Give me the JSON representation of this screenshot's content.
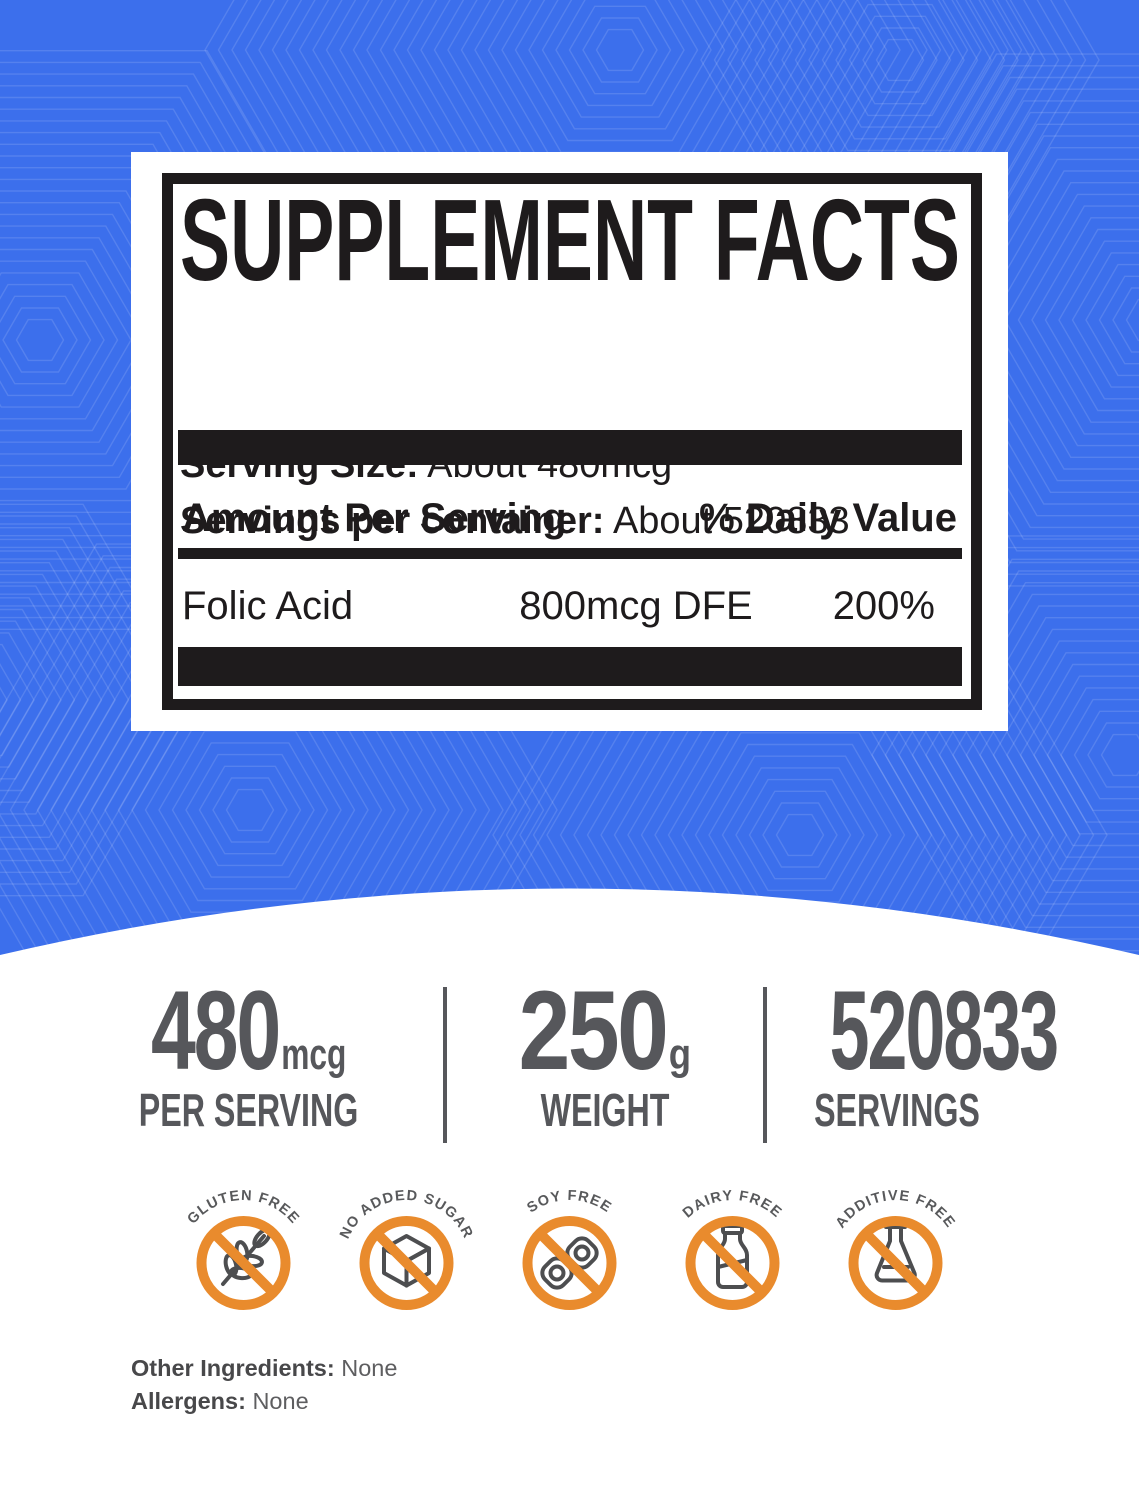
{
  "colors": {
    "background_blue": "#3C6FEC",
    "ink_black": "#1E1B1C",
    "gray_text": "#58595B",
    "badge_orange": "#E98B2D",
    "icon_gray": "#4D4E50"
  },
  "label": {
    "title": "SUPPLEMENT FACTS",
    "serving_size_label": "Serving Size:",
    "serving_size_value": "About 480mcg**",
    "servings_label": "Servings per container:",
    "servings_value": "About 520833",
    "col_amount": "Amount Per Serving",
    "col_daily_value": "% Daily Value",
    "rows": [
      {
        "name": "Folic Acid",
        "amount": "800mcg DFE",
        "daily_value": "200%"
      }
    ]
  },
  "stats": {
    "items": [
      {
        "value": "480",
        "unit": "mcg",
        "label": "PER SERVING"
      },
      {
        "value": "250",
        "unit": "g",
        "label": "WEIGHT"
      },
      {
        "value": "520833",
        "unit": "",
        "label": "SERVINGS"
      }
    ]
  },
  "badges": {
    "items": [
      {
        "label": "GLUTEN FREE",
        "icon": "wheat-icon"
      },
      {
        "label": "NO ADDED SUGAR",
        "icon": "sugar-cube-icon"
      },
      {
        "label": "SOY FREE",
        "icon": "soybean-icon"
      },
      {
        "label": "DAIRY FREE",
        "icon": "milk-bottle-icon"
      },
      {
        "label": "ADDITIVE FREE",
        "icon": "flask-icon"
      }
    ]
  },
  "footer": {
    "other_ingredients_label": "Other Ingredients:",
    "other_ingredients_value": "None",
    "allergens_label": "Allergens:",
    "allergens_value": "None"
  }
}
